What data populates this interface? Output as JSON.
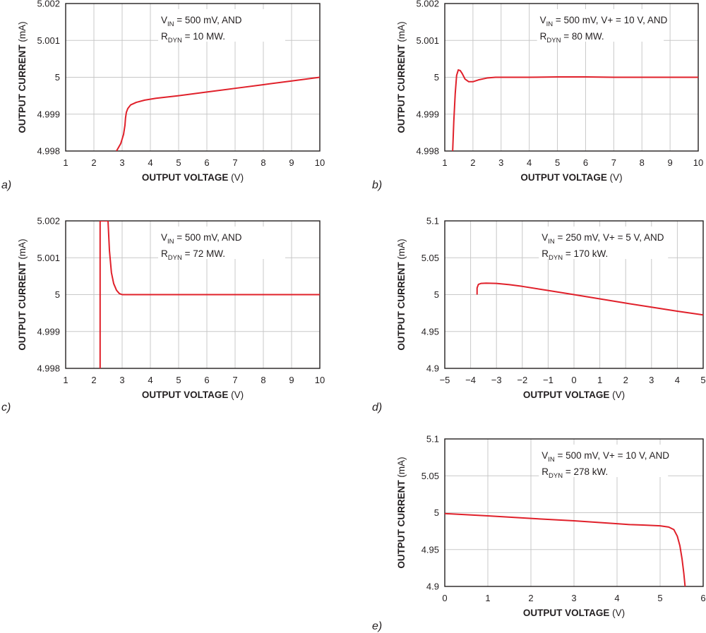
{
  "chart_data": [
    {
      "id": "a",
      "type": "line",
      "panel_label": "a)",
      "xlabel_bold": "OUTPUT VOLTAGE",
      "xlabel_unit": " (V)",
      "ylabel_bold": "OUTPUT CURRENT",
      "ylabel_unit": " (mA)",
      "xlim": [
        1,
        10
      ],
      "ylim": [
        4.998,
        5.002
      ],
      "xticks": [
        1,
        2,
        3,
        4,
        5,
        6,
        7,
        8,
        9,
        10
      ],
      "xtick_labels": [
        "1",
        "2",
        "3",
        "4",
        "5",
        "6",
        "7",
        "8",
        "9",
        "10"
      ],
      "yticks": [
        4.998,
        4.999,
        5,
        5.001,
        5.002
      ],
      "ytick_labels": [
        "4.998",
        "4.999",
        "5",
        "5.001",
        "5.002"
      ],
      "grid": true,
      "annotation": [
        {
          "main": "V",
          "sub": "IN",
          "rest": " = 500 mV, AND"
        },
        {
          "main": "R",
          "sub": "DYN",
          "rest": " = 10 MW."
        }
      ],
      "series": [
        {
          "color": "#e0202a",
          "x": [
            2.8,
            2.95,
            3.05,
            3.1,
            3.12,
            3.15,
            3.2,
            3.3,
            3.5,
            3.8,
            4.2,
            5,
            6,
            7,
            8,
            9,
            10
          ],
          "y": [
            4.998,
            4.9982,
            4.99845,
            4.9987,
            4.9989,
            4.99905,
            4.99915,
            4.99925,
            4.99932,
            4.99938,
            4.99943,
            4.9995,
            4.9996,
            4.9997,
            4.9998,
            4.9999,
            5.0
          ]
        }
      ]
    },
    {
      "id": "b",
      "type": "line",
      "panel_label": "b)",
      "xlabel_bold": "OUTPUT VOLTAGE",
      "xlabel_unit": " (V)",
      "ylabel_bold": "OUTPUT CURRENT",
      "ylabel_unit": " (mA)",
      "xlim": [
        1,
        10
      ],
      "ylim": [
        4.998,
        5.002
      ],
      "xticks": [
        1,
        2,
        3,
        4,
        5,
        6,
        7,
        8,
        9,
        10
      ],
      "xtick_labels": [
        "1",
        "2",
        "3",
        "4",
        "5",
        "6",
        "7",
        "8",
        "9",
        "10"
      ],
      "yticks": [
        4.998,
        4.999,
        5,
        5.001,
        5.002
      ],
      "ytick_labels": [
        "4.998",
        "4.999",
        "5",
        "5.001",
        "5.002"
      ],
      "grid": true,
      "annotation": [
        {
          "main": "V",
          "sub": "IN",
          "rest": " = 500 mV, V+ = 10 V, AND"
        },
        {
          "main": "R",
          "sub": "DYN",
          "rest": " = 80 MW."
        }
      ],
      "series": [
        {
          "color": "#e0202a",
          "x": [
            1.28,
            1.32,
            1.37,
            1.42,
            1.48,
            1.55,
            1.62,
            1.72,
            1.85,
            2.0,
            2.2,
            2.5,
            2.8,
            3.2,
            4,
            5,
            6,
            7,
            8,
            9,
            10
          ],
          "y": [
            4.998,
            4.9988,
            4.99955,
            5.00005,
            5.0002,
            5.00018,
            5.0001,
            4.99995,
            4.99988,
            4.99988,
            4.99993,
            4.99998,
            5.0,
            5.0,
            5.0,
            5.00001,
            5.00001,
            5.0,
            5.0,
            5.0,
            5.0
          ]
        }
      ]
    },
    {
      "id": "c",
      "type": "line",
      "panel_label": "c)",
      "xlabel_bold": "OUTPUT VOLTAGE",
      "xlabel_unit": " (V)",
      "ylabel_bold": "OUTPUT CURRENT",
      "ylabel_unit": " (mA)",
      "xlim": [
        1,
        10
      ],
      "ylim": [
        4.998,
        5.002
      ],
      "xticks": [
        1,
        2,
        3,
        4,
        5,
        6,
        7,
        8,
        9,
        10
      ],
      "xtick_labels": [
        "1",
        "2",
        "3",
        "4",
        "5",
        "6",
        "7",
        "8",
        "9",
        "10"
      ],
      "yticks": [
        4.998,
        4.999,
        5,
        5.001,
        5.002
      ],
      "ytick_labels": [
        "4.998",
        "4.999",
        "5",
        "5.001",
        "5.002"
      ],
      "grid": true,
      "annotation": [
        {
          "main": "V",
          "sub": "IN",
          "rest": " = 500 mV, AND"
        },
        {
          "main": "R",
          "sub": "DYN",
          "rest": " = 72 MW."
        }
      ],
      "series": [
        {
          "color": "#e0202a",
          "x": [
            2.22,
            2.22,
            2.24,
            2.27,
            2.3,
            2.5,
            2.55,
            2.62,
            2.7,
            2.8,
            2.9,
            3.0,
            3.2,
            4,
            5,
            6,
            7,
            8,
            9,
            10
          ],
          "y": [
            4.998,
            5.002,
            5.002,
            5.002,
            5.002,
            5.002,
            5.0012,
            5.0006,
            5.0003,
            5.00012,
            5.00003,
            5.0,
            5.0,
            5.0,
            5.0,
            5.0,
            5.0,
            5.0,
            5.0,
            5.0
          ]
        }
      ]
    },
    {
      "id": "d",
      "type": "line",
      "panel_label": "d)",
      "xlabel_bold": "OUTPUT VOLTAGE",
      "xlabel_unit": " (V)",
      "ylabel_bold": "OUTPUT CURRENT",
      "ylabel_unit": " (mA)",
      "xlim": [
        -5,
        5
      ],
      "ylim": [
        4.9,
        5.1
      ],
      "xticks": [
        -5,
        -4,
        -3,
        -2,
        -1,
        0,
        1,
        2,
        3,
        4,
        5
      ],
      "xtick_labels": [
        "−5",
        "−4",
        "−3",
        "−2",
        "−1",
        "0",
        "1",
        "2",
        "3",
        "4",
        "5"
      ],
      "yticks": [
        4.9,
        4.95,
        5,
        5.05,
        5.1
      ],
      "ytick_labels": [
        "4.9",
        "4.95",
        "5",
        "5.05",
        "5.1"
      ],
      "grid": true,
      "annotation": [
        {
          "main": "V",
          "sub": "IN",
          "rest": " = 250 mV, V+ = 5 V, AND"
        },
        {
          "main": "R",
          "sub": "DYN",
          "rest": " = 170 kW."
        }
      ],
      "series": [
        {
          "color": "#e0202a",
          "x": [
            -3.75,
            -3.75,
            -3.7,
            -3.6,
            -3.4,
            -3.0,
            -2.5,
            -2,
            -1,
            0,
            1,
            2,
            3,
            4,
            5
          ],
          "y": [
            5.0,
            5.009,
            5.0138,
            5.0152,
            5.0155,
            5.0152,
            5.0135,
            5.0112,
            5.0056,
            5.0,
            4.9943,
            4.9885,
            4.983,
            4.9775,
            4.9725
          ]
        }
      ]
    },
    {
      "id": "e",
      "type": "line",
      "panel_label": "e)",
      "xlabel_bold": "OUTPUT VOLTAGE",
      "xlabel_unit": " (V)",
      "ylabel_bold": "OUTPUT CURRENT",
      "ylabel_unit": " (mA)",
      "xlim": [
        0,
        6
      ],
      "ylim": [
        4.9,
        5.1
      ],
      "xticks": [
        0,
        1,
        2,
        3,
        4,
        5,
        6
      ],
      "xtick_labels": [
        "0",
        "1",
        "2",
        "3",
        "4",
        "5",
        "6"
      ],
      "yticks": [
        4.9,
        4.95,
        5,
        5.05,
        5.1
      ],
      "ytick_labels": [
        "4.9",
        "4.95",
        "5",
        "5.05",
        "5.1"
      ],
      "grid": true,
      "annotation": [
        {
          "main": "V",
          "sub": "IN",
          "rest": " = 500 mV, V+ = 10 V, AND"
        },
        {
          "main": "R",
          "sub": "DYN",
          "rest": " = 278 kW."
        }
      ],
      "series": [
        {
          "color": "#e0202a",
          "x": [
            0,
            1,
            2,
            3,
            4,
            4.3,
            4.6,
            5.0,
            5.2,
            5.32,
            5.4,
            5.46,
            5.51,
            5.55,
            5.58
          ],
          "y": [
            4.9988,
            4.9957,
            4.9922,
            4.989,
            4.985,
            4.9838,
            4.9832,
            4.9822,
            4.9805,
            4.977,
            4.968,
            4.955,
            4.937,
            4.918,
            4.9
          ]
        }
      ]
    }
  ]
}
